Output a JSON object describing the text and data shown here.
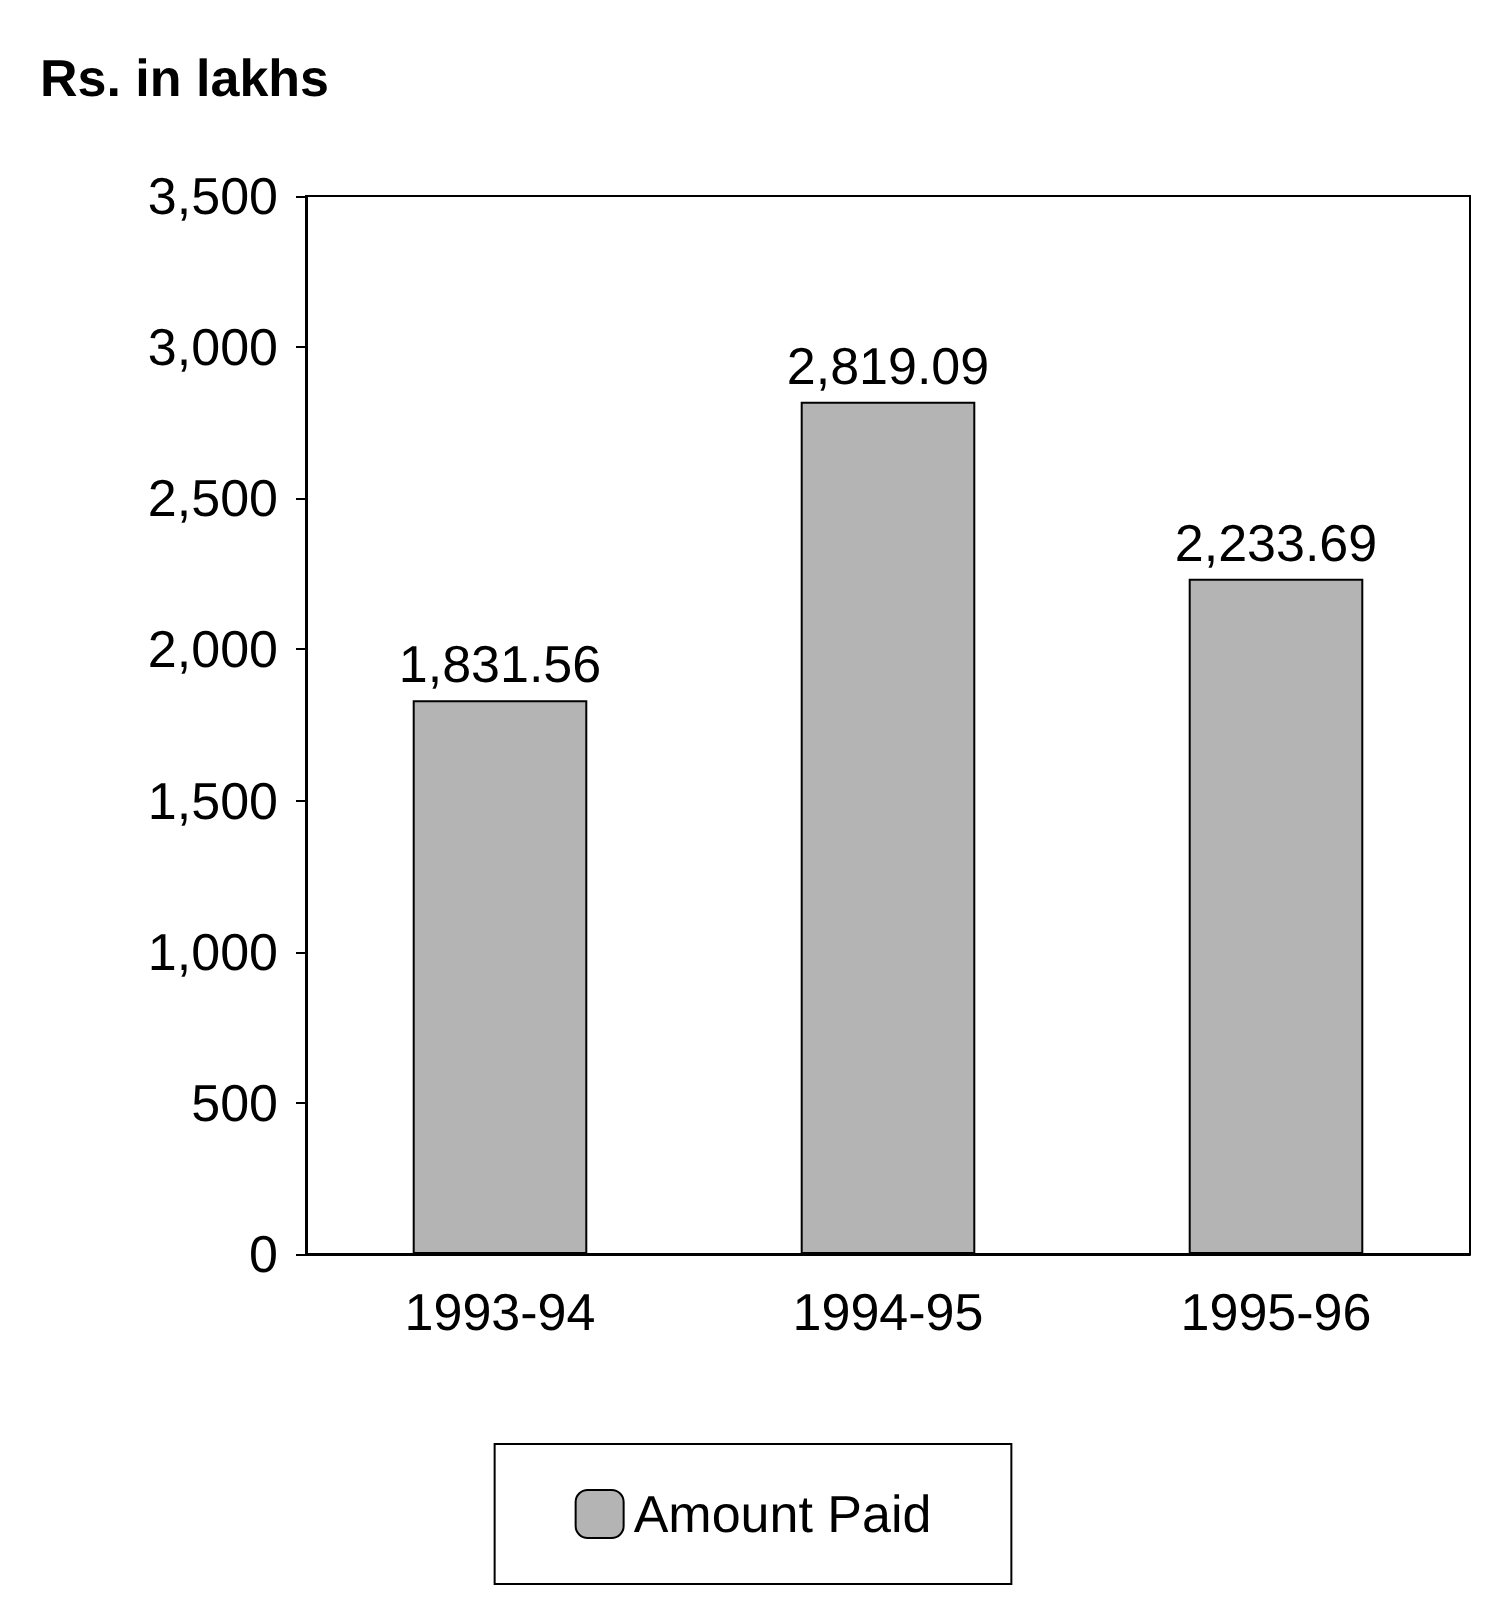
{
  "chart_data": {
    "type": "bar",
    "ylabel": "Rs. in lakhs",
    "categories": [
      "1993-94",
      "1994-95",
      "1995-96"
    ],
    "series": [
      {
        "name": "Amount Paid",
        "color": "#b4b4b4",
        "values": [
          1831.56,
          2819.09,
          2233.69
        ],
        "value_labels": [
          "1,831.56",
          "2,819.09",
          "2,233.69"
        ]
      }
    ],
    "ylim": [
      0,
      3500
    ],
    "yticks": [
      0,
      500,
      {
        "value": 1000,
        "label": "1,000"
      },
      {
        "value": 1500,
        "label": "1,500"
      },
      {
        "value": 2000,
        "label": "2,000"
      },
      {
        "value": 2500,
        "label": "2,500"
      },
      {
        "value": 3000,
        "label": "3,000"
      },
      {
        "value": 3500,
        "label": "3,500"
      }
    ],
    "legend": "bottom"
  }
}
